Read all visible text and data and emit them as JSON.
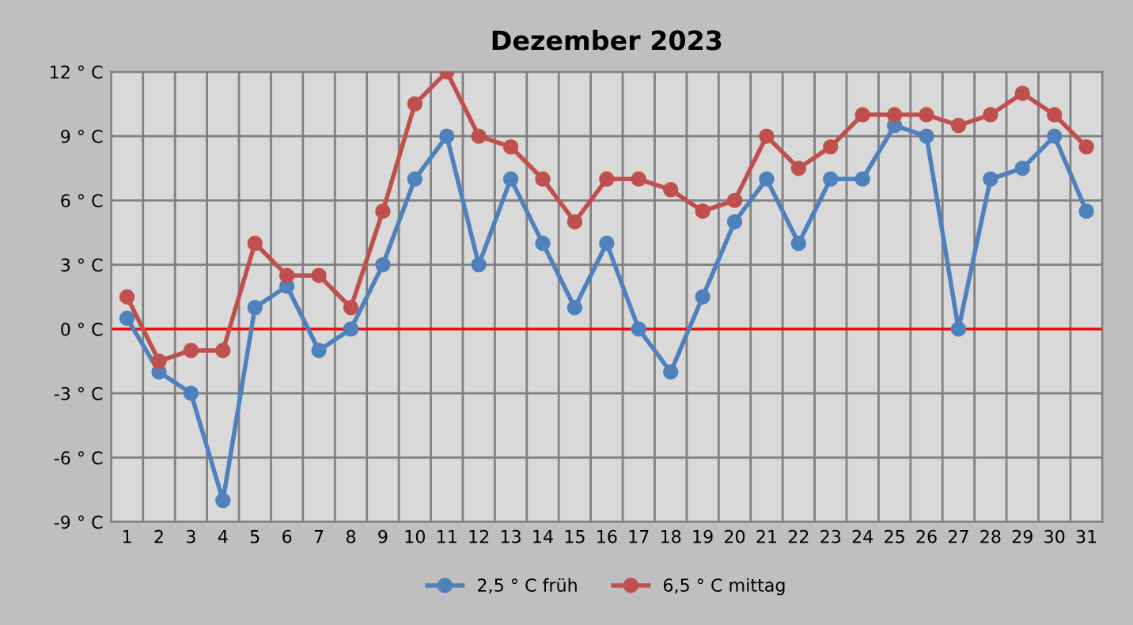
{
  "chart_data": {
    "type": "line",
    "title": "Dezember 2023",
    "categories": [
      "1",
      "2",
      "3",
      "4",
      "5",
      "6",
      "7",
      "8",
      "9",
      "10",
      "11",
      "12",
      "13",
      "14",
      "15",
      "16",
      "17",
      "18",
      "19",
      "20",
      "21",
      "22",
      "23",
      "24",
      "25",
      "26",
      "27",
      "28",
      "29",
      "30",
      "31"
    ],
    "series": [
      {
        "name": "2,5 ° C früh",
        "color": "#4f81bd",
        "values": [
          0.5,
          -2,
          -3,
          -8,
          1,
          2,
          -1,
          0,
          3,
          7,
          9,
          3,
          7,
          4,
          1,
          4,
          0,
          -2,
          1.5,
          5,
          7,
          4,
          7,
          7,
          9.5,
          9,
          0,
          7,
          7.5,
          9,
          5.5
        ]
      },
      {
        "name": "6,5 ° C mittag",
        "color": "#c0504d",
        "values": [
          1.5,
          -1.5,
          -1,
          -1,
          4,
          2.5,
          2.5,
          1,
          5.5,
          10.5,
          12,
          9,
          8.5,
          7,
          5,
          7,
          7,
          6.5,
          5.5,
          6,
          9,
          7.5,
          8.5,
          10,
          10,
          10,
          9.5,
          10,
          11,
          10,
          8.5
        ]
      }
    ],
    "ylim": [
      -9,
      12
    ],
    "yticks": [
      {
        "value": -9,
        "label": "-9 ° C"
      },
      {
        "value": -6,
        "label": "-6 ° C"
      },
      {
        "value": -3,
        "label": "-3 ° C"
      },
      {
        "value": 0,
        "label": "0 ° C"
      },
      {
        "value": 3,
        "label": "3 ° C"
      },
      {
        "value": 6,
        "label": "6 ° C"
      },
      {
        "value": 9,
        "label": "9 ° C"
      },
      {
        "value": 12,
        "label": "12 ° C"
      }
    ],
    "ref_lines": [
      {
        "axis": "y",
        "value": 0,
        "color": "#ff0000"
      }
    ],
    "grid": true,
    "legend": "bottom",
    "marker": "circle",
    "line_style": "solid"
  }
}
